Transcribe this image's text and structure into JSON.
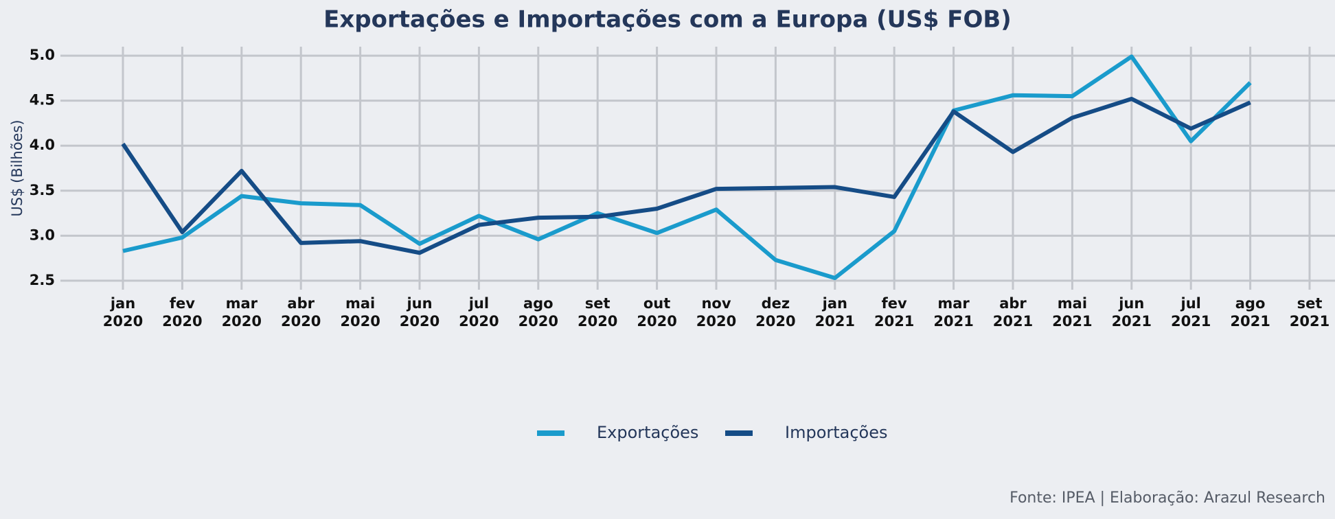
{
  "chart_data": {
    "type": "line",
    "title": "Exportações e Importações com a Europa (US$ FOB)",
    "y_label": "US$ (Bilhões)",
    "source": "Fonte: IPEA | Elaboração: Arazul Research",
    "categories": [
      [
        "jan",
        "2020"
      ],
      [
        "fev",
        "2020"
      ],
      [
        "mar",
        "2020"
      ],
      [
        "abr",
        "2020"
      ],
      [
        "mai",
        "2020"
      ],
      [
        "jun",
        "2020"
      ],
      [
        "jul",
        "2020"
      ],
      [
        "ago",
        "2020"
      ],
      [
        "set",
        "2020"
      ],
      [
        "out",
        "2020"
      ],
      [
        "nov",
        "2020"
      ],
      [
        "dez",
        "2020"
      ],
      [
        "jan",
        "2021"
      ],
      [
        "fev",
        "2021"
      ],
      [
        "mar",
        "2021"
      ],
      [
        "abr",
        "2021"
      ],
      [
        "mai",
        "2021"
      ],
      [
        "jun",
        "2021"
      ],
      [
        "jul",
        "2021"
      ],
      [
        "ago",
        "2021"
      ],
      [
        "set",
        "2021"
      ]
    ],
    "series": [
      {
        "name": "Exportações",
        "color": "#1a9bcc",
        "values": [
          2.83,
          2.98,
          3.44,
          3.36,
          3.34,
          2.91,
          3.22,
          2.96,
          3.25,
          3.03,
          3.29,
          2.73,
          2.53,
          3.05,
          4.39,
          4.56,
          4.55,
          4.99,
          4.05,
          4.7,
          null
        ]
      },
      {
        "name": "Importações",
        "color": "#154c86",
        "values": [
          4.02,
          3.04,
          3.72,
          2.92,
          2.94,
          2.81,
          3.12,
          3.2,
          3.21,
          3.3,
          3.52,
          3.53,
          3.54,
          3.43,
          4.38,
          3.93,
          4.31,
          4.52,
          4.19,
          4.48,
          null
        ]
      }
    ],
    "ylim": [
      2.4,
      5.1
    ],
    "yticks": [
      {
        "value": 2.5,
        "label": "2.5"
      },
      {
        "value": 3,
        "label": "3.0"
      },
      {
        "value": 3.5,
        "label": "3.5"
      },
      {
        "value": 4,
        "label": "4.0"
      },
      {
        "value": 4.5,
        "label": "4.5"
      },
      {
        "value": 5,
        "label": "5.0"
      }
    ],
    "grid": true,
    "legend": "bottom"
  }
}
